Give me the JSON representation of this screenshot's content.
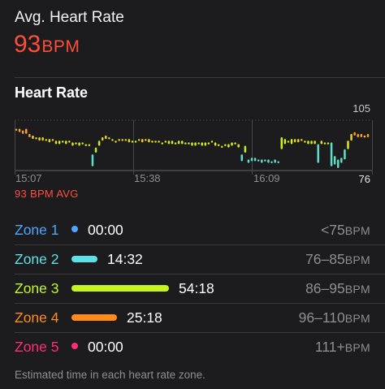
{
  "summary": {
    "label": "Avg. Heart Rate",
    "value": "93",
    "unit": "BPM"
  },
  "heart_rate_chart": {
    "title": "Heart Rate",
    "avg_caption": "93 BPM AVG",
    "y_max_label": "105",
    "y_min_label": "76",
    "x_tick_labels": [
      "15:07",
      "15:38",
      "16:09"
    ],
    "chart_data": {
      "type": "line",
      "x_labels": [
        "15:07",
        "15:38",
        "16:09"
      ],
      "ylim": [
        76,
        105
      ],
      "series": [
        {
          "values": [
            [
              100,
              99
            ],
            [
              100,
              98
            ],
            [
              99,
              97
            ],
            [
              100,
              97
            ],
            [
              97,
              95
            ],
            [
              96,
              94
            ],
            [
              95,
              94
            ],
            [
              95,
              93
            ],
            [
              95,
              93
            ],
            [
              94,
              93
            ],
            [
              94,
              92
            ],
            [
              94,
              93
            ],
            [
              93,
              91
            ],
            [
              93,
              91
            ],
            [
              93,
              92
            ],
            [
              93,
              91
            ],
            [
              93,
              92
            ],
            [
              92,
              90
            ],
            [
              92,
              91
            ],
            [
              92,
              90
            ],
            [
              92,
              91
            ],
            [
              91,
              90
            ],
            [
              91,
              90
            ],
            [
              85,
              78
            ],
            [
              89,
              86
            ],
            [
              93,
              90
            ],
            [
              95,
              93
            ],
            [
              96,
              94
            ],
            [
              95,
              94
            ],
            [
              94,
              93
            ],
            [
              93,
              92
            ],
            [
              94,
              93
            ],
            [
              94,
              93
            ],
            [
              94,
              93
            ],
            [
              94,
              92
            ],
            [
              93,
              92
            ],
            [
              93,
              92
            ],
            [
              94,
              93
            ],
            [
              94,
              92
            ],
            [
              94,
              93
            ],
            [
              94,
              92
            ],
            [
              93,
              92
            ],
            [
              93,
              92
            ],
            [
              93,
              92
            ],
            [
              92,
              91
            ],
            [
              93,
              92
            ],
            [
              93,
              91
            ],
            [
              93,
              91
            ],
            [
              92,
              91
            ],
            [
              93,
              91
            ],
            [
              93,
              91
            ],
            [
              92,
              91
            ],
            [
              92,
              91
            ],
            [
              92,
              90
            ],
            [
              92,
              90
            ],
            [
              92,
              91
            ],
            [
              92,
              90
            ],
            [
              92,
              90
            ],
            [
              92,
              91
            ],
            [
              93,
              92
            ],
            [
              92,
              90
            ],
            [
              91,
              90
            ],
            [
              90,
              89
            ],
            [
              91,
              90
            ],
            [
              91,
              89
            ],
            [
              92,
              90
            ],
            [
              92,
              91
            ],
            [
              91,
              89
            ],
            [
              85,
              81
            ],
            [
              90,
              86
            ],
            [
              82,
              80
            ],
            [
              83,
              81
            ],
            [
              83,
              81
            ],
            [
              82,
              81
            ],
            [
              82,
              80
            ],
            [
              82,
              81
            ],
            [
              82,
              80
            ],
            [
              81,
              80
            ],
            [
              82,
              80
            ],
            [
              81,
              80
            ],
            [
              95,
              88
            ],
            [
              94,
              91
            ],
            [
              93,
              92
            ],
            [
              94,
              91
            ],
            [
              94,
              92
            ],
            [
              94,
              92
            ],
            [
              94,
              93
            ],
            [
              93,
              92
            ],
            [
              93,
              91
            ],
            [
              93,
              91
            ],
            [
              93,
              91
            ],
            [
              91,
              80
            ],
            [
              93,
              91
            ],
            [
              92,
              91
            ],
            [
              92,
              91
            ],
            [
              92,
              78
            ],
            [
              84,
              79
            ],
            [
              82,
              77
            ],
            [
              83,
              80
            ],
            [
              88,
              82
            ],
            [
              93,
              88
            ],
            [
              97,
              93
            ],
            [
              98,
              96
            ],
            [
              97,
              95
            ],
            [
              97,
              95
            ],
            [
              96,
              95
            ],
            [
              97,
              95
            ]
          ]
        }
      ]
    }
  },
  "zones": [
    {
      "name": "Zone 1",
      "time": "00:00",
      "range": "<75",
      "unit": "BPM",
      "color": "#4da6ff",
      "bar_fraction": 0
    },
    {
      "name": "Zone 2",
      "time": "14:32",
      "range": "76–85",
      "unit": "BPM",
      "color": "#5ce1e6",
      "bar_fraction": 0.268
    },
    {
      "name": "Zone 3",
      "time": "54:18",
      "range": "86–95",
      "unit": "BPM",
      "color": "#c5f51e",
      "bar_fraction": 1.0
    },
    {
      "name": "Zone 4",
      "time": "25:18",
      "range": "96–110",
      "unit": "BPM",
      "color": "#ff8c1a",
      "bar_fraction": 0.466
    },
    {
      "name": "Zone 5",
      "time": "00:00",
      "range": "111+",
      "unit": "BPM",
      "color": "#ff2d78",
      "bar_fraction": 0
    }
  ],
  "footnote": "Estimated time in each heart rate zone."
}
